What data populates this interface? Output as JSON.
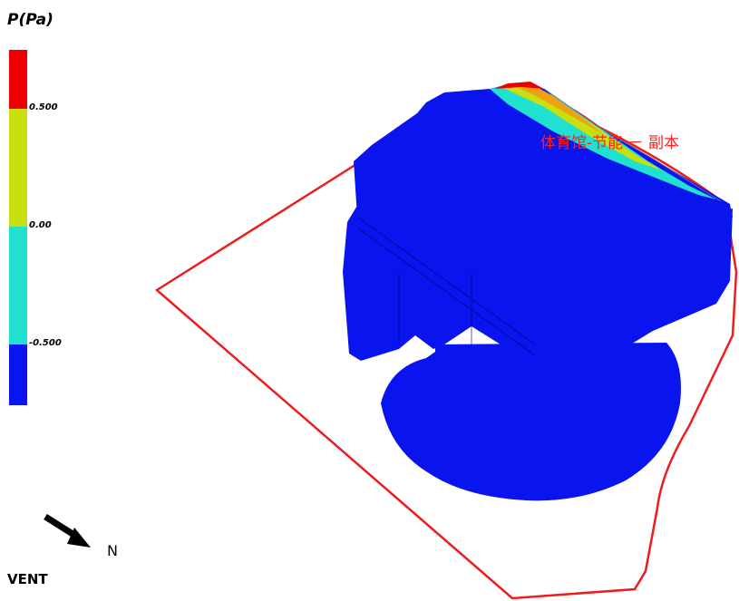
{
  "legend": {
    "title": "P(Pa)",
    "bands": [
      {
        "color": "#ee0000"
      },
      {
        "color": "#c8e010"
      },
      {
        "color": "#20e0d0"
      },
      {
        "color": "#0a14ee"
      }
    ],
    "ticks": [
      "0.500",
      "0.00",
      "-0.500"
    ]
  },
  "model": {
    "label": "体育馆-节能 － 副本",
    "boundary_color": "#ee1c1c",
    "building_color": "#0a14ee"
  },
  "compass": {
    "label": "N",
    "icon": "north-arrow-icon"
  },
  "mode": {
    "label": "VENT"
  }
}
